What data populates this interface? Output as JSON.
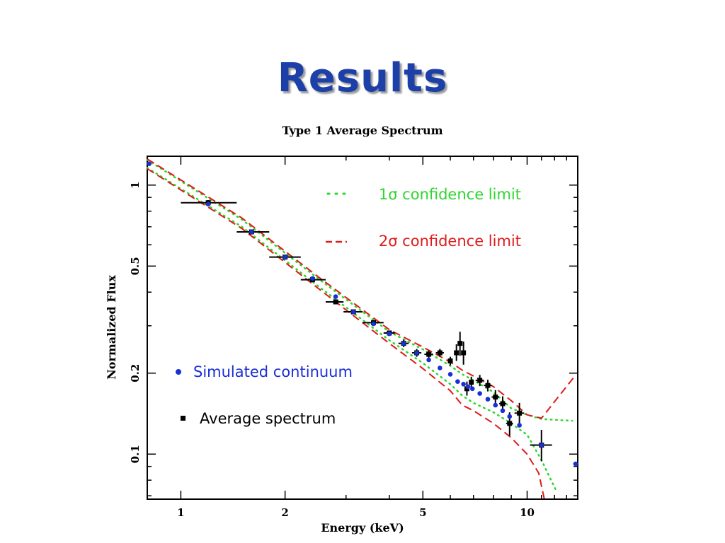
{
  "slide": {
    "title": "Results"
  },
  "chart_data": {
    "type": "scatter",
    "title": "Type 1 Average Spectrum",
    "xlabel": "Energy (keV)",
    "ylabel": "Normalized Flux",
    "xscale": "log",
    "yscale": "log",
    "xlim": [
      0.8,
      14
    ],
    "ylim": [
      0.068,
      1.28
    ],
    "xticks": [
      {
        "value": 1,
        "label": "1"
      },
      {
        "value": 2,
        "label": "2"
      },
      {
        "value": 5,
        "label": "5"
      },
      {
        "value": 10,
        "label": "10"
      }
    ],
    "yticks": [
      {
        "value": 0.1,
        "label": "0.1"
      },
      {
        "value": 0.2,
        "label": "0.2"
      },
      {
        "value": 0.5,
        "label": "0.5"
      },
      {
        "value": 1,
        "label": "1"
      }
    ],
    "colors": {
      "average": "#000000",
      "simulated": "#1a2fd6",
      "sigma1": "#2ed62e",
      "sigma2": "#e01a1a"
    },
    "legend": {
      "sigma1": "1σ confidence limit",
      "sigma2": "2σ confidence limit",
      "simulated": "Simulated continuum",
      "average": "Average spectrum"
    },
    "series": [
      {
        "key": "average",
        "marker": "square",
        "points": [
          {
            "x": 1.2,
            "y": 0.86,
            "xlo": 1.0,
            "xhi": 1.45,
            "ylo": 0.84,
            "yhi": 0.88
          },
          {
            "x": 1.6,
            "y": 0.67,
            "xlo": 1.45,
            "xhi": 1.8,
            "ylo": 0.66,
            "yhi": 0.68
          },
          {
            "x": 2.0,
            "y": 0.54,
            "xlo": 1.8,
            "xhi": 2.22,
            "ylo": 0.535,
            "yhi": 0.55
          },
          {
            "x": 2.4,
            "y": 0.445,
            "xlo": 2.22,
            "xhi": 2.62,
            "ylo": 0.44,
            "yhi": 0.45
          },
          {
            "x": 2.8,
            "y": 0.368,
            "xlo": 2.62,
            "xhi": 2.95,
            "ylo": 0.362,
            "yhi": 0.374
          },
          {
            "x": 3.15,
            "y": 0.338,
            "xlo": 2.95,
            "xhi": 3.35,
            "ylo": 0.332,
            "yhi": 0.344
          },
          {
            "x": 3.6,
            "y": 0.308,
            "xlo": 3.35,
            "xhi": 3.85,
            "ylo": 0.302,
            "yhi": 0.314
          },
          {
            "x": 4.0,
            "y": 0.282,
            "xlo": 3.85,
            "xhi": 4.15,
            "ylo": 0.276,
            "yhi": 0.288
          },
          {
            "x": 4.4,
            "y": 0.258,
            "xlo": 4.25,
            "xhi": 4.55,
            "ylo": 0.25,
            "yhi": 0.266
          },
          {
            "x": 4.8,
            "y": 0.238,
            "xlo": 4.65,
            "xhi": 4.95,
            "ylo": 0.23,
            "yhi": 0.246
          },
          {
            "x": 5.2,
            "y": 0.235,
            "xlo": 5.05,
            "xhi": 5.35,
            "ylo": 0.228,
            "yhi": 0.243
          },
          {
            "x": 5.6,
            "y": 0.238,
            "xlo": 5.45,
            "xhi": 5.75,
            "ylo": 0.23,
            "yhi": 0.246
          },
          {
            "x": 6.0,
            "y": 0.222,
            "xlo": 5.9,
            "xhi": 6.1,
            "ylo": 0.214,
            "yhi": 0.23
          },
          {
            "x": 6.25,
            "y": 0.238,
            "xlo": 6.17,
            "xhi": 6.33,
            "ylo": 0.222,
            "yhi": 0.256
          },
          {
            "x": 6.4,
            "y": 0.258,
            "xlo": 6.33,
            "xhi": 6.47,
            "ylo": 0.232,
            "yhi": 0.285
          },
          {
            "x": 6.55,
            "y": 0.238,
            "xlo": 6.47,
            "xhi": 6.63,
            "ylo": 0.215,
            "yhi": 0.262
          },
          {
            "x": 6.7,
            "y": 0.175,
            "xlo": 6.6,
            "xhi": 6.8,
            "ylo": 0.165,
            "yhi": 0.186
          },
          {
            "x": 6.9,
            "y": 0.185,
            "xlo": 6.8,
            "xhi": 7.0,
            "ylo": 0.176,
            "yhi": 0.194
          },
          {
            "x": 7.3,
            "y": 0.188,
            "xlo": 7.1,
            "xhi": 7.5,
            "ylo": 0.179,
            "yhi": 0.197
          },
          {
            "x": 7.7,
            "y": 0.18,
            "xlo": 7.5,
            "xhi": 7.9,
            "ylo": 0.171,
            "yhi": 0.189
          },
          {
            "x": 8.1,
            "y": 0.163,
            "xlo": 7.9,
            "xhi": 8.3,
            "ylo": 0.153,
            "yhi": 0.173
          },
          {
            "x": 8.5,
            "y": 0.154,
            "xlo": 8.3,
            "xhi": 8.7,
            "ylo": 0.144,
            "yhi": 0.164
          },
          {
            "x": 8.9,
            "y": 0.13,
            "xlo": 8.7,
            "xhi": 9.1,
            "ylo": 0.117,
            "yhi": 0.143
          },
          {
            "x": 9.5,
            "y": 0.142,
            "xlo": 9.2,
            "xhi": 9.8,
            "ylo": 0.13,
            "yhi": 0.155
          },
          {
            "x": 11.0,
            "y": 0.108,
            "xlo": 10.2,
            "xhi": 11.8,
            "ylo": 0.094,
            "yhi": 0.123
          }
        ]
      },
      {
        "key": "simulated",
        "marker": "dot",
        "points": [
          {
            "x": 0.81,
            "y": 1.2
          },
          {
            "x": 1.2,
            "y": 0.85
          },
          {
            "x": 1.6,
            "y": 0.67
          },
          {
            "x": 2.0,
            "y": 0.54
          },
          {
            "x": 2.4,
            "y": 0.45
          },
          {
            "x": 2.8,
            "y": 0.385
          },
          {
            "x": 3.15,
            "y": 0.338
          },
          {
            "x": 3.6,
            "y": 0.305
          },
          {
            "x": 4.0,
            "y": 0.28
          },
          {
            "x": 4.4,
            "y": 0.258
          },
          {
            "x": 4.8,
            "y": 0.238
          },
          {
            "x": 5.2,
            "y": 0.224
          },
          {
            "x": 5.6,
            "y": 0.209
          },
          {
            "x": 6.0,
            "y": 0.198
          },
          {
            "x": 6.3,
            "y": 0.186
          },
          {
            "x": 6.55,
            "y": 0.182
          },
          {
            "x": 6.75,
            "y": 0.178
          },
          {
            "x": 6.95,
            "y": 0.175
          },
          {
            "x": 7.3,
            "y": 0.168
          },
          {
            "x": 7.7,
            "y": 0.16
          },
          {
            "x": 8.1,
            "y": 0.152
          },
          {
            "x": 8.5,
            "y": 0.145
          },
          {
            "x": 8.9,
            "y": 0.138
          },
          {
            "x": 9.5,
            "y": 0.128
          },
          {
            "x": 11.0,
            "y": 0.108
          },
          {
            "x": 13.8,
            "y": 0.092
          }
        ]
      }
    ],
    "bands": [
      {
        "key": "sigma1",
        "style": "dotted",
        "lower": [
          [
            0.8,
            1.16
          ],
          [
            1.5,
            0.7
          ],
          [
            2.5,
            0.42
          ],
          [
            4,
            0.265
          ],
          [
            5,
            0.218
          ],
          [
            6,
            0.182
          ],
          [
            6.5,
            0.165
          ],
          [
            7,
            0.155
          ],
          [
            8,
            0.143
          ],
          [
            9,
            0.13
          ],
          [
            10,
            0.118
          ],
          [
            11,
            0.095
          ],
          [
            12.2,
            0.072
          ]
        ],
        "upper": [
          [
            0.8,
            1.24
          ],
          [
            1.5,
            0.745
          ],
          [
            2.5,
            0.448
          ],
          [
            4,
            0.285
          ],
          [
            5,
            0.245
          ],
          [
            6,
            0.213
          ],
          [
            6.5,
            0.198
          ],
          [
            7,
            0.188
          ],
          [
            8,
            0.17
          ],
          [
            9,
            0.148
          ],
          [
            10,
            0.14
          ],
          [
            11,
            0.135
          ],
          [
            13.5,
            0.133
          ]
        ]
      },
      {
        "key": "sigma2",
        "style": "dashed",
        "lower": [
          [
            0.8,
            1.15
          ],
          [
            1.5,
            0.69
          ],
          [
            2.5,
            0.412
          ],
          [
            4,
            0.258
          ],
          [
            5,
            0.208
          ],
          [
            6,
            0.172
          ],
          [
            6.5,
            0.152
          ],
          [
            7,
            0.145
          ],
          [
            8,
            0.13
          ],
          [
            9,
            0.115
          ],
          [
            10,
            0.1
          ],
          [
            10.8,
            0.085
          ],
          [
            11.2,
            0.068
          ]
        ],
        "upper": [
          [
            0.8,
            1.25
          ],
          [
            1.5,
            0.755
          ],
          [
            2.5,
            0.455
          ],
          [
            4,
            0.29
          ],
          [
            5,
            0.25
          ],
          [
            6,
            0.22
          ],
          [
            6.5,
            0.205
          ],
          [
            7,
            0.195
          ],
          [
            8,
            0.178
          ],
          [
            9,
            0.158
          ],
          [
            10,
            0.14
          ],
          [
            11,
            0.136
          ],
          [
            13.6,
            0.192
          ]
        ]
      }
    ]
  }
}
